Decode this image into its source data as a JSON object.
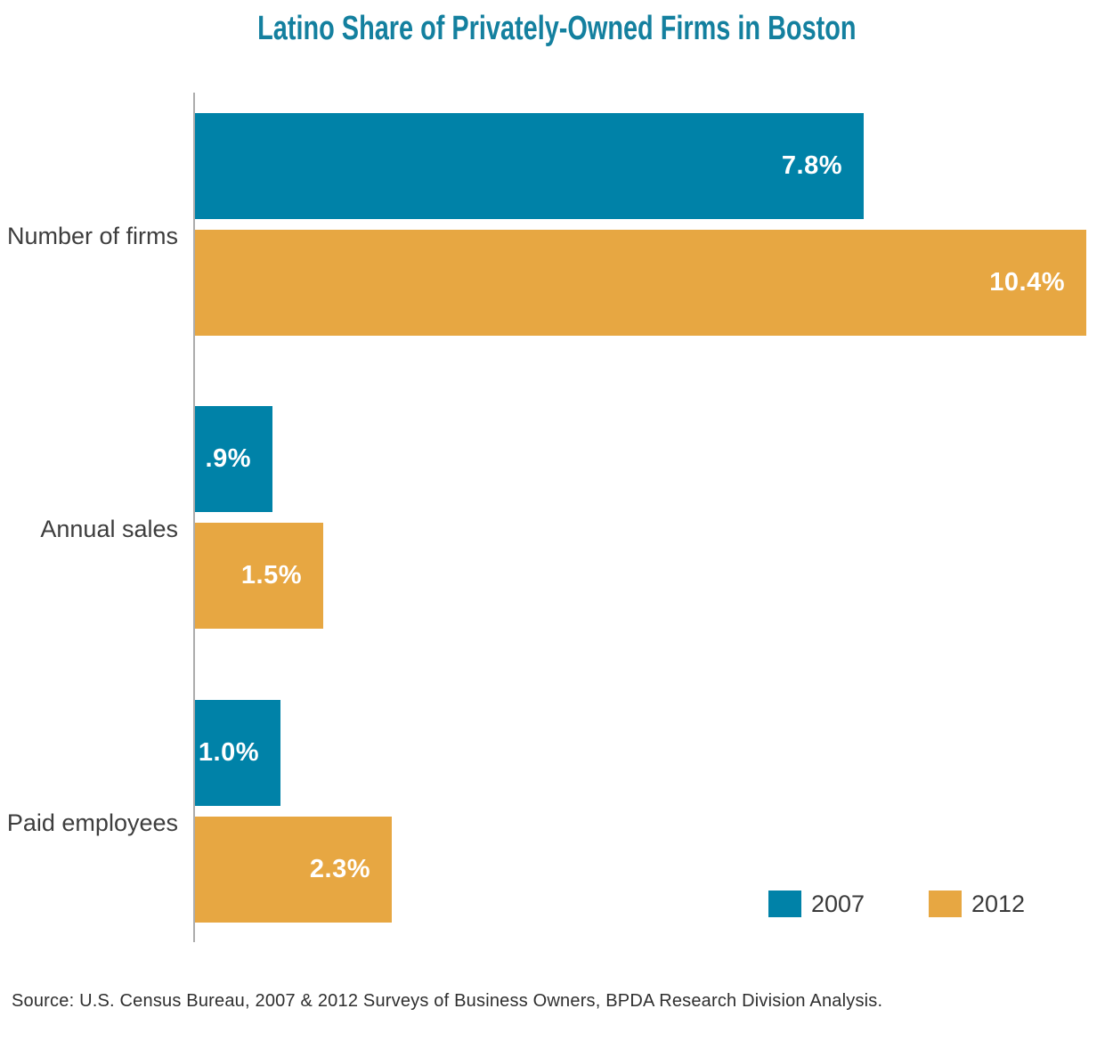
{
  "title": "Latino Share of Privately-Owned Firms in Boston",
  "source_note": "Source: U.S. Census Bureau, 2007 & 2012 Surveys of Business Owners, BPDA Research Division Analysis.",
  "legend": [
    {
      "label": "2007",
      "color": "#0082A8"
    },
    {
      "label": "2012",
      "color": "#E7A742"
    }
  ],
  "colors": {
    "series_2007": "#0082A8",
    "series_2012": "#E7A742",
    "title": "#14809F",
    "axis_line": "#ACACAC",
    "category_text": "#3D3D3D",
    "value_text": "#FFFFFF"
  },
  "chart_data": {
    "type": "bar",
    "orientation": "horizontal",
    "title": "Latino Share of Privately-Owned Firms in Boston",
    "categories": [
      "Number of firms",
      "Annual sales",
      "Paid employees"
    ],
    "series": [
      {
        "name": "2007",
        "color": "#0082A8",
        "values": [
          7.8,
          0.9,
          1.0
        ],
        "value_labels": [
          "7.8%",
          ".9%",
          "1.0%"
        ]
      },
      {
        "name": "2012",
        "color": "#E7A742",
        "values": [
          10.4,
          1.5,
          2.3
        ],
        "value_labels": [
          "10.4%",
          "1.5%",
          "2.3%"
        ]
      }
    ],
    "unit": "%",
    "xlim": [
      0,
      10.4
    ],
    "grid": false,
    "legend_position": "bottom-right"
  }
}
